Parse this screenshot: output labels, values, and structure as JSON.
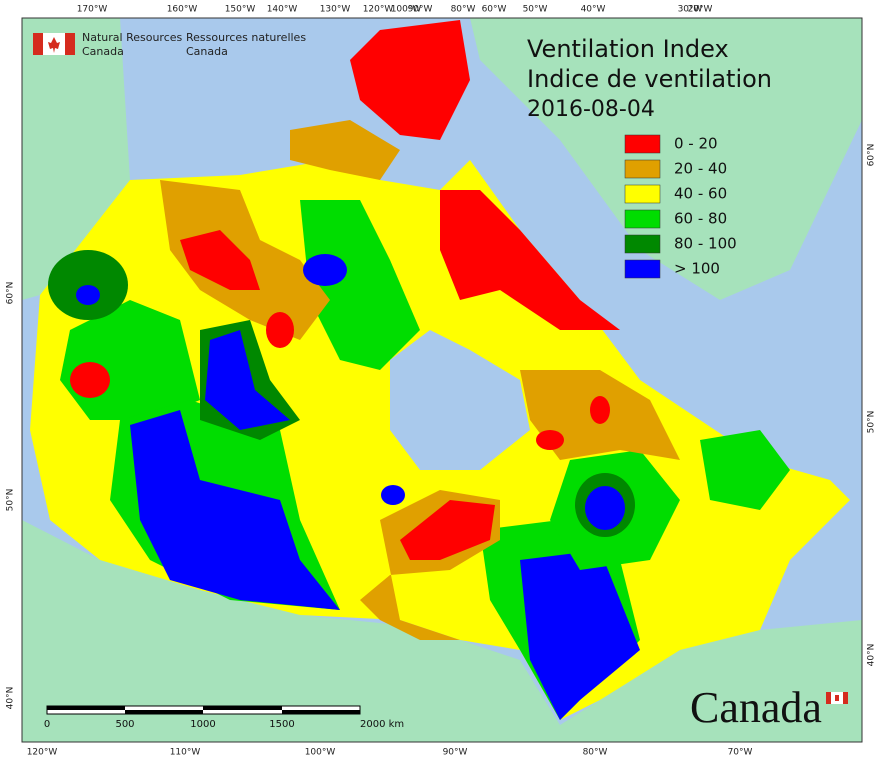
{
  "header": {
    "agency_en": [
      "Natural Resources",
      "Canada"
    ],
    "agency_fr": [
      "Ressources naturelles",
      "Canada"
    ]
  },
  "title": [
    "Ventilation Index",
    "Indice de ventilation"
  ],
  "date": "2016-08-04",
  "legend": [
    {
      "label": "0 - 20",
      "color": "#ff0000"
    },
    {
      "label": "20 - 40",
      "color": "#e0a000"
    },
    {
      "label": "40 - 60",
      "color": "#ffff00"
    },
    {
      "label": "60 - 80",
      "color": "#00dd00"
    },
    {
      "label": "80 - 100",
      "color": "#008800"
    },
    {
      "label": "> 100",
      "color": "#0000ff"
    }
  ],
  "graticule": {
    "top": [
      "170°W",
      "160°W",
      "150°W",
      "140°W",
      "130°W",
      "120°W",
      "100°W",
      "90°W",
      "80°W",
      "60°W",
      "50°W",
      "40°W",
      "30°W",
      "20°W"
    ],
    "bottom": [
      "120°W",
      "110°W",
      "100°W",
      "90°W",
      "80°W",
      "70°W"
    ],
    "left": [
      "60°N",
      "50°N",
      "40°N"
    ],
    "right": [
      "60°N",
      "50°N",
      "40°N"
    ]
  },
  "scale_bar": [
    "0",
    "500",
    "1000",
    "1500",
    "2000 km"
  ],
  "wordmark": "Canada"
}
